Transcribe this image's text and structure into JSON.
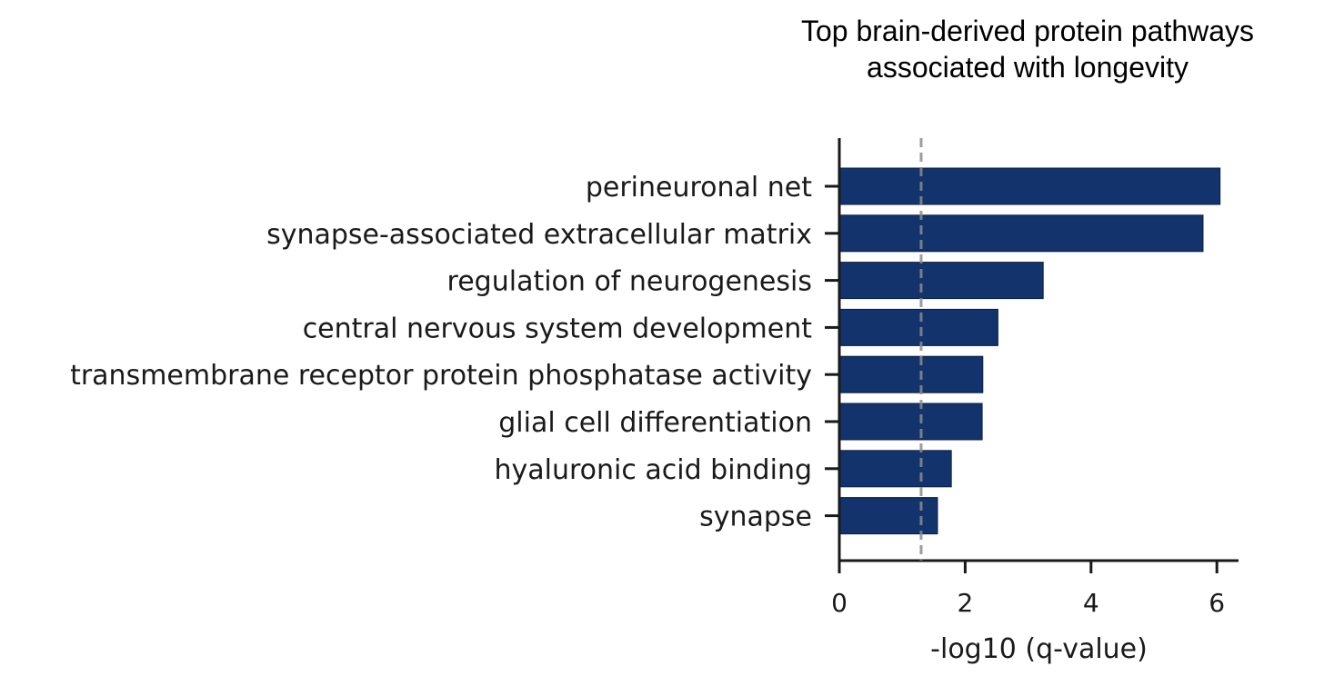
{
  "chart_data": {
    "type": "bar",
    "orientation": "horizontal",
    "title": [
      "Top brain-derived protein pathways",
      "associated with longevity"
    ],
    "categories": [
      "perineuronal net",
      "synapse-associated extracellular matrix",
      "regulation of neurogenesis",
      "central nervous system development",
      "transmembrane receptor protein phosphatase activity",
      "glial cell differentiation",
      "hyaluronic acid binding",
      "synapse"
    ],
    "values": [
      6.05,
      5.78,
      3.24,
      2.52,
      2.28,
      2.27,
      1.78,
      1.56
    ],
    "xlabel": "-log10 (q-value)",
    "ylabel": "",
    "xlim": [
      0,
      6.35
    ],
    "xticks": [
      0,
      2,
      4,
      6
    ],
    "threshold": 1.3,
    "bar_color": "#12336b",
    "threshold_color": "#8c8c8c",
    "grid": false
  }
}
